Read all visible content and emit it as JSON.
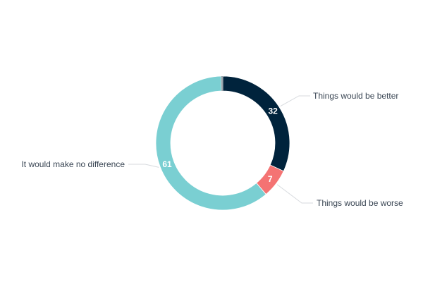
{
  "chart_data": {
    "type": "pie",
    "variant": "donut",
    "title": "",
    "slices": [
      {
        "label": "Things would be better",
        "value": 32,
        "color": "#00233c"
      },
      {
        "label": "Things would be worse",
        "value": 7,
        "color": "#f47373"
      },
      {
        "label": "It would make no difference",
        "value": 61,
        "color": "#7acfd2"
      }
    ],
    "other_sliver_color": "#9aa3ab",
    "legend": "outside labels with leader lines"
  }
}
